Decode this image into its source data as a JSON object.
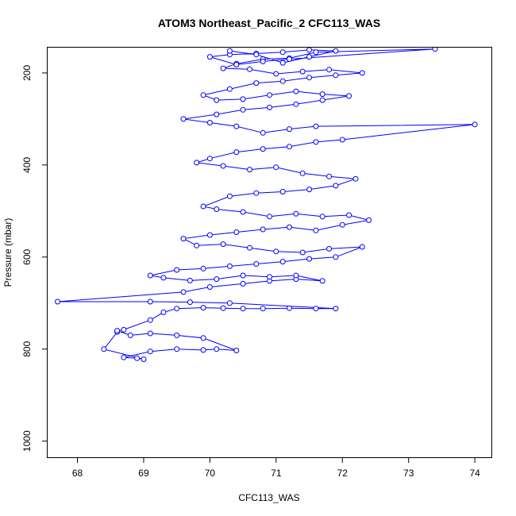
{
  "chart_data": {
    "type": "line",
    "title": "ATOM3 Northeast_Pacific_2 CFC113_WAS",
    "xlabel": "CFC113_WAS",
    "ylabel": "Pressure (mbar)",
    "xlim": [
      67.55,
      74.25
    ],
    "ylim": [
      1035,
      145
    ],
    "y_reversed": true,
    "x_ticks": [
      68,
      69,
      70,
      71,
      72,
      73,
      74
    ],
    "y_ticks": [
      200,
      400,
      600,
      800,
      1000
    ],
    "grid": false,
    "legend": "none",
    "color": "#0000ff",
    "marker": "open-circle",
    "series": [
      {
        "x": [
          68.6,
          68.4,
          69.0,
          68.9,
          68.7,
          69.1,
          69.5,
          69.9,
          70.1,
          70.4,
          69.9,
          69.5,
          69.1,
          68.8,
          68.6,
          68.7,
          69.1,
          69.3,
          69.5,
          69.9,
          70.2,
          70.5,
          70.8,
          71.2,
          71.6,
          71.9,
          70.3,
          69.7,
          69.1,
          67.7,
          69.6,
          70.0,
          70.5,
          70.9,
          71.3,
          71.7,
          71.3,
          70.9,
          70.5,
          70.1,
          69.7,
          69.3,
          69.1,
          69.5,
          69.9,
          70.3,
          70.7,
          71.1,
          71.5,
          71.9,
          72.3,
          71.8,
          71.4,
          71.0,
          70.6,
          70.2,
          69.8,
          69.6,
          70.0,
          70.4,
          70.8,
          71.2,
          71.6,
          72.0,
          72.4,
          72.1,
          71.7,
          71.3,
          70.9,
          70.5,
          70.1,
          69.9,
          70.3,
          70.7,
          71.1,
          71.5,
          71.9,
          72.2,
          71.8,
          71.4,
          71.0,
          70.6,
          70.2,
          69.8,
          70.0,
          70.4,
          70.8,
          71.2,
          71.6,
          72.0,
          74.0,
          71.6,
          71.2,
          70.8,
          70.4,
          70.0,
          69.6,
          70.1,
          70.5,
          70.9,
          71.3,
          71.7,
          72.1,
          71.7,
          71.3,
          70.9,
          70.5,
          70.1,
          69.9,
          70.3,
          70.7,
          71.1,
          71.5,
          71.9,
          72.3,
          71.8,
          71.4,
          71.0,
          70.6,
          70.2,
          70.4,
          70.8,
          71.2,
          71.6,
          73.4,
          71.2,
          70.8,
          70.4,
          70.0,
          70.3,
          70.7,
          71.1,
          71.5,
          71.9,
          71.5,
          71.1,
          70.7,
          70.3
        ],
        "y": [
          763,
          800,
          822,
          820,
          818,
          805,
          800,
          802,
          800,
          803,
          776,
          770,
          766,
          770,
          760,
          758,
          737,
          720,
          712,
          710,
          711,
          712,
          712,
          711,
          712,
          712,
          700,
          698,
          697,
          697,
          676,
          665,
          658,
          652,
          648,
          652,
          640,
          643,
          640,
          648,
          651,
          645,
          640,
          628,
          625,
          620,
          615,
          610,
          604,
          600,
          578,
          582,
          590,
          588,
          580,
          572,
          575,
          560,
          552,
          546,
          540,
          535,
          542,
          530,
          520,
          509,
          512,
          506,
          512,
          502,
          496,
          490,
          468,
          461,
          458,
          453,
          445,
          430,
          425,
          418,
          405,
          410,
          402,
          395,
          386,
          372,
          365,
          360,
          350,
          345,
          312,
          316,
          322,
          330,
          316,
          308,
          300,
          290,
          280,
          275,
          268,
          259,
          250,
          246,
          240,
          248,
          257,
          259,
          248,
          235,
          222,
          218,
          210,
          205,
          200,
          193,
          197,
          202,
          192,
          190,
          180,
          170,
          168,
          155,
          148,
          170,
          175,
          182,
          165,
          160,
          158,
          155,
          150,
          152,
          165,
          178,
          160,
          152
        ]
      }
    ]
  }
}
